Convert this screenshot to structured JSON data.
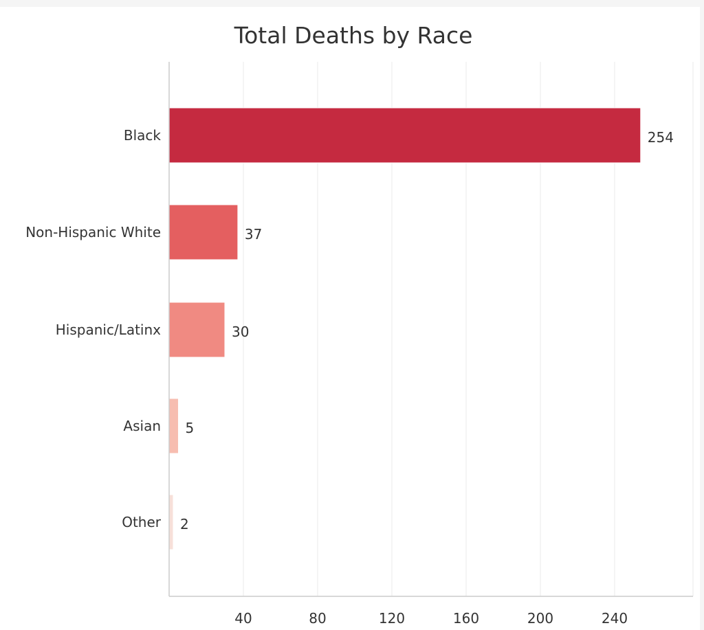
{
  "chart_data": {
    "type": "bar",
    "orientation": "horizontal",
    "title": "Total Deaths by Race",
    "xlabel": "",
    "ylabel": "",
    "categories": [
      "Black",
      "Non-Hispanic White",
      "Hispanic/Latinx",
      "Asian",
      "Other"
    ],
    "values": [
      254,
      37,
      30,
      5,
      2
    ],
    "colors": [
      "#c52a40",
      "#e45f60",
      "#f08a82",
      "#f7bdb0",
      "#f7e0d9"
    ],
    "xlim": [
      0,
      280
    ],
    "xticks": [
      40,
      80,
      120,
      160,
      200,
      240
    ],
    "grid": true,
    "legend": "none"
  }
}
